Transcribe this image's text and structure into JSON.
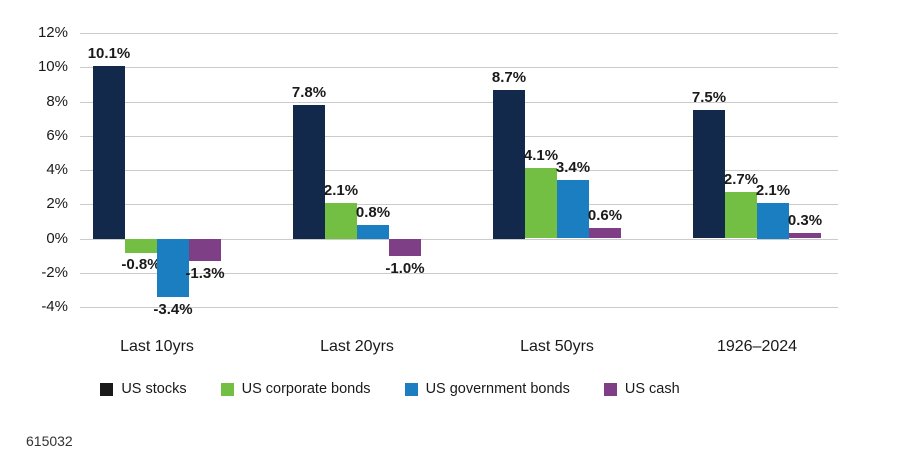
{
  "footnote": "615032",
  "colors": {
    "background": "#ffffff",
    "gridline": "#cbcbcb",
    "text": "#1a1a1a",
    "us_stocks_bar": "#12294b",
    "us_stocks_legend": "#1a1a1a",
    "us_corporate_bonds": "#72bf44",
    "us_government_bonds": "#1b7ec1",
    "us_cash": "#7e3f87"
  },
  "chart_data": {
    "type": "bar",
    "title": "",
    "xlabel": "",
    "ylabel": "",
    "categories": [
      "Last 10yrs",
      "Last 20yrs",
      "Last 50yrs",
      "1926–2024"
    ],
    "series": [
      {
        "name": "US stocks",
        "color": "#12294b",
        "legend_color": "#1a1a1a",
        "values": [
          10.1,
          7.8,
          8.7,
          7.5
        ],
        "data_labels": [
          "10.1%",
          "7.8%",
          "8.7%",
          "7.5%"
        ]
      },
      {
        "name": "US corporate bonds",
        "color": "#72bf44",
        "legend_color": "#72bf44",
        "values": [
          -0.8,
          2.1,
          4.1,
          2.7
        ],
        "data_labels": [
          "-0.8%",
          "2.1%",
          "4.1%",
          "2.7%"
        ]
      },
      {
        "name": "US government bonds",
        "color": "#1b7ec1",
        "legend_color": "#1b7ec1",
        "values": [
          -3.4,
          0.8,
          3.4,
          2.1
        ],
        "data_labels": [
          "-3.4%",
          "0.8%",
          "3.4%",
          "2.1%"
        ]
      },
      {
        "name": "US cash",
        "color": "#7e3f87",
        "legend_color": "#7e3f87",
        "values": [
          -1.3,
          -1.0,
          0.6,
          0.3
        ],
        "data_labels": [
          "-1.3%",
          "-1.0%",
          "0.6%",
          "0.3%"
        ]
      }
    ],
    "yticks": [
      12,
      10,
      8,
      6,
      4,
      2,
      0,
      -2,
      -4
    ],
    "ytick_labels": [
      "12%",
      "10%",
      "8%",
      "6%",
      "4%",
      "2%",
      "0%",
      "-2%",
      "-4%"
    ],
    "ylim": [
      -4,
      12
    ],
    "grid": true,
    "legend_position": "bottom"
  }
}
